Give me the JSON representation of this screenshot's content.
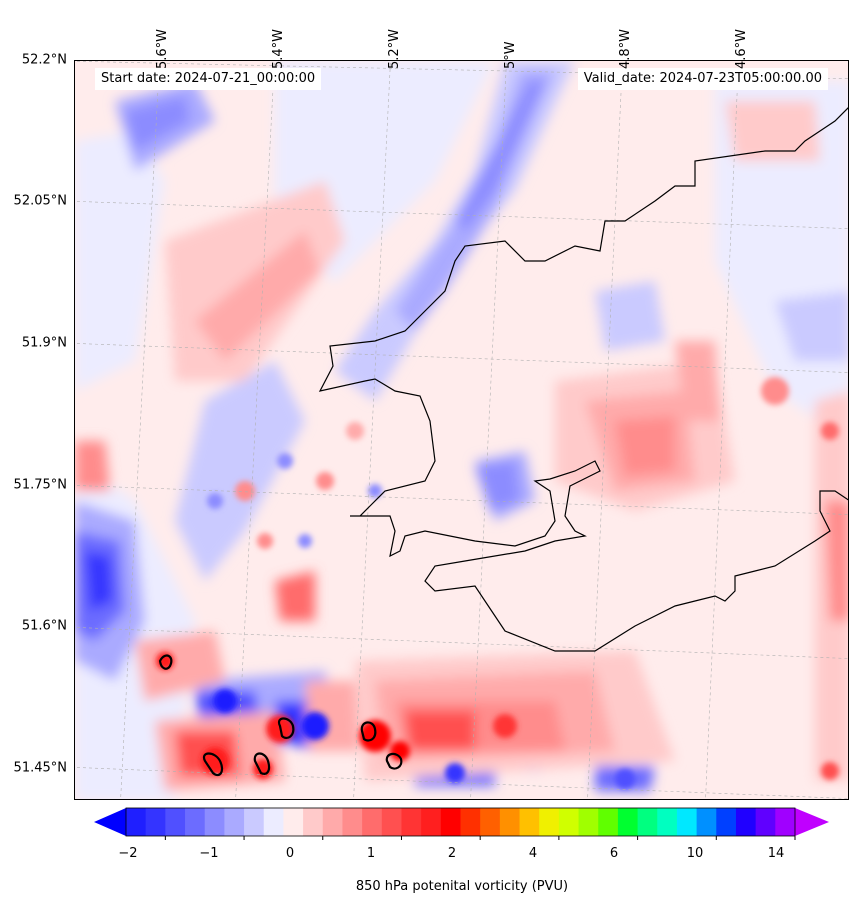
{
  "map": {
    "start_date": "Start date: 2024-07-21_00:00:00",
    "valid_date": "Valid_date: 2024-07-23T05:00:00.00",
    "lat_labels": [
      "52.2°N",
      "52.05°N",
      "51.9°N",
      "51.75°N",
      "51.6°N",
      "51.45°N"
    ],
    "lon_labels": [
      "5.6°W",
      "5.4°W",
      "5.2°W",
      "5°W",
      "4.8°W",
      "4.6°W"
    ],
    "coastline_color": "#000000",
    "gridline_color": "#b0b0b0"
  },
  "colorbar": {
    "label": "850 hPa potenital vorticity (PVU)",
    "tick_labels": [
      "−2",
      "−1",
      "0",
      "1",
      "2",
      "4",
      "6",
      "10",
      "14"
    ],
    "colors": [
      "#1f1fff",
      "#3434ff",
      "#5050ff",
      "#6c6cff",
      "#8c8cff",
      "#aaaaff",
      "#cacaff",
      "#ececff",
      "#ffecec",
      "#ffcaca",
      "#ffaaaa",
      "#ff8c8c",
      "#ff6c6c",
      "#ff5050",
      "#ff3434",
      "#ff1f1f",
      "#ff0000",
      "#ff3000",
      "#ff6000",
      "#ff9000",
      "#ffc000",
      "#f0f000",
      "#d0ff00",
      "#a0ff00",
      "#60ff00",
      "#00ff30",
      "#00ff80",
      "#00ffc0",
      "#00e8ff",
      "#0090ff",
      "#0040ff",
      "#2000ff",
      "#6000ff",
      "#a000ff"
    ],
    "under_color": "#0000ff",
    "over_color": "#c000ff"
  }
}
